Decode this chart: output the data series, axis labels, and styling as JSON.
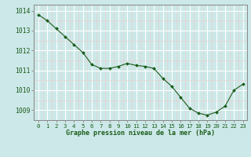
{
  "x": [
    0,
    1,
    2,
    3,
    4,
    5,
    6,
    7,
    8,
    9,
    10,
    11,
    12,
    13,
    14,
    15,
    16,
    17,
    18,
    19,
    20,
    21,
    22,
    23
  ],
  "y": [
    1013.8,
    1013.5,
    1013.1,
    1012.7,
    1012.3,
    1011.9,
    1011.3,
    1011.1,
    1011.1,
    1011.2,
    1011.35,
    1011.25,
    1011.2,
    1011.1,
    1010.6,
    1010.2,
    1009.65,
    1009.1,
    1008.85,
    1008.75,
    1008.9,
    1009.2,
    1010.0,
    1010.3
  ],
  "line_color": "#1a5c1a",
  "marker_color": "#1a5c1a",
  "bg_color": "#cce8e8",
  "grid_major_color": "#ffffff",
  "grid_minor_color": "#e8d0d0",
  "ylabel_values": [
    1009,
    1010,
    1011,
    1012,
    1013,
    1014
  ],
  "xlabel_values": [
    0,
    1,
    2,
    3,
    4,
    5,
    6,
    7,
    8,
    9,
    10,
    11,
    12,
    13,
    14,
    15,
    16,
    17,
    18,
    19,
    20,
    21,
    22,
    23
  ],
  "xlabel": "Graphe pression niveau de la mer (hPa)",
  "ylim": [
    1008.5,
    1014.3
  ],
  "xlim": [
    -0.5,
    23.5
  ],
  "tick_color": "#1a5c1a",
  "axis_color": "#888888",
  "xlabel_fontsize": 6.0,
  "ytick_fontsize": 5.8,
  "xtick_fontsize": 5.2
}
